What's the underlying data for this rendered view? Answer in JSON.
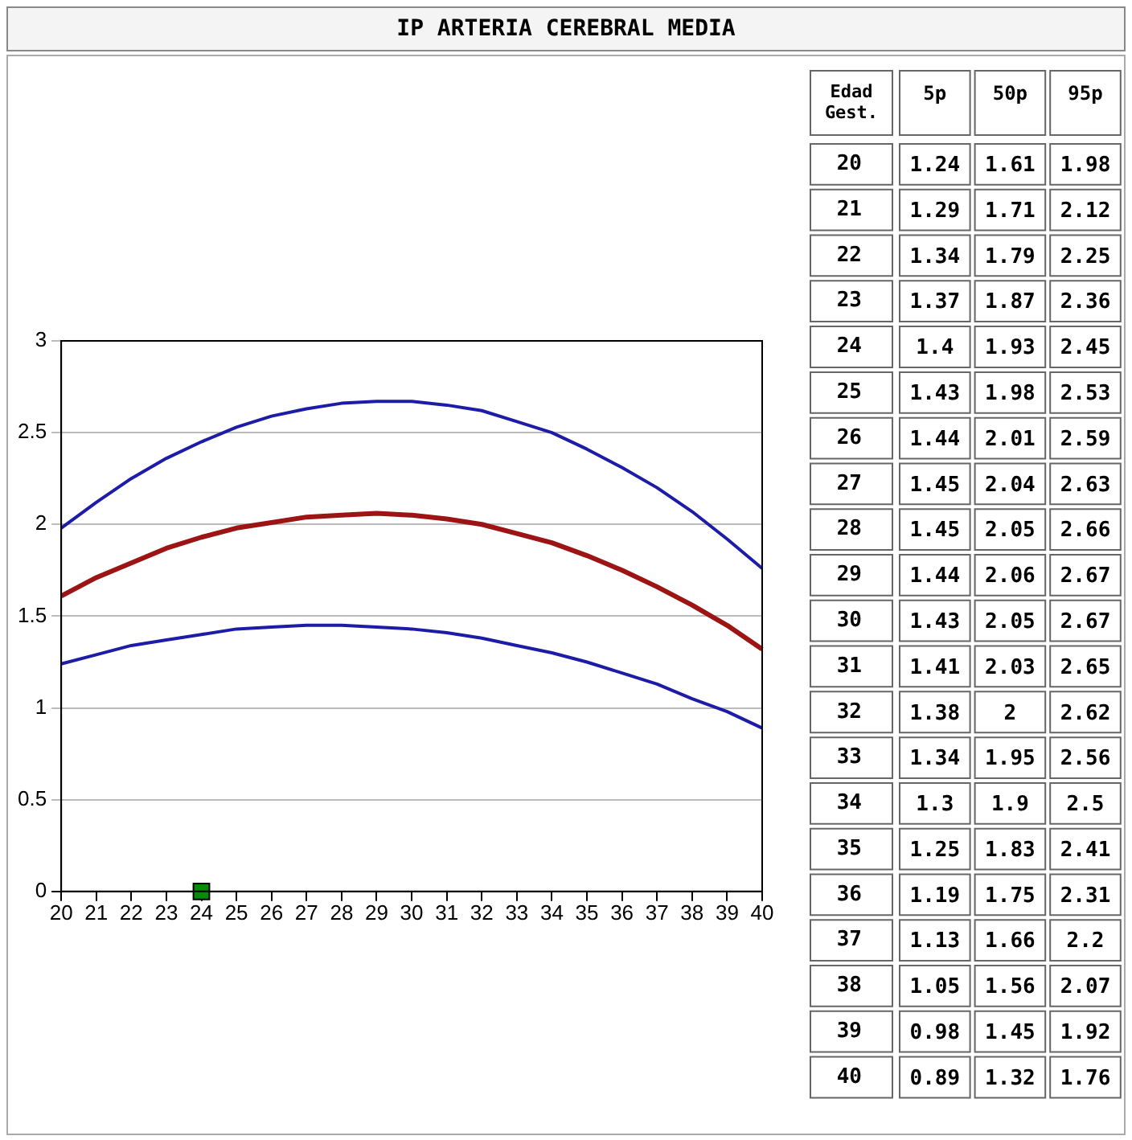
{
  "chart_data": [
    {
      "type": "line",
      "title": "IP ARTERIA CEREBRAL MEDIA",
      "x": [
        20,
        21,
        22,
        23,
        24,
        25,
        26,
        27,
        28,
        29,
        30,
        31,
        32,
        33,
        34,
        35,
        36,
        37,
        38,
        39,
        40
      ],
      "series": [
        {
          "color": "#1c1ca8",
          "values": [
            1.24,
            1.29,
            1.34,
            1.37,
            1.4,
            1.43,
            1.44,
            1.45,
            1.45,
            1.44,
            1.43,
            1.41,
            1.38,
            1.34,
            1.3,
            1.25,
            1.19,
            1.13,
            1.05,
            0.98,
            0.89
          ]
        },
        {
          "color": "#9c1414",
          "values": [
            1.61,
            1.71,
            1.79,
            1.87,
            1.93,
            1.98,
            2.01,
            2.04,
            2.05,
            2.06,
            2.05,
            2.03,
            2,
            1.95,
            1.9,
            1.83,
            1.75,
            1.66,
            1.56,
            1.45,
            1.32
          ]
        },
        {
          "color": "#1c1ca8",
          "values": [
            1.98,
            2.12,
            2.25,
            2.36,
            2.45,
            2.53,
            2.59,
            2.63,
            2.66,
            2.67,
            2.67,
            2.65,
            2.62,
            2.56,
            2.5,
            2.41,
            2.31,
            2.2,
            2.07,
            1.92,
            1.76
          ]
        },
        {
          "type": "scatter",
          "color": "#0a8a0a",
          "marker": "square",
          "x": [
            24
          ],
          "values": [
            0
          ]
        }
      ],
      "xlim": [
        20,
        40
      ],
      "xticks": [
        20,
        21,
        22,
        23,
        24,
        25,
        26,
        27,
        28,
        29,
        30,
        31,
        32,
        33,
        34,
        35,
        36,
        37,
        38,
        39,
        40
      ],
      "ylim": [
        0,
        3
      ],
      "yticks": [
        0,
        0.5,
        1,
        1.5,
        2,
        2.5,
        3
      ],
      "grid": "y",
      "legend": false,
      "marker": "none",
      "line_style": "solid"
    },
    {
      "type": "heatmap",
      "annotations": [
        "Edad Gest."
      ],
      "categories": [
        "5p",
        "50p",
        "95p"
      ],
      "y_categories": [
        "20",
        "21",
        "22",
        "23",
        "24",
        "25",
        "26",
        "27",
        "28",
        "29",
        "30",
        "31",
        "32",
        "33",
        "34",
        "35",
        "36",
        "37",
        "38",
        "39",
        "40"
      ],
      "cells": [
        [
          1.24,
          1.61,
          1.98
        ],
        [
          1.29,
          1.71,
          2.12
        ],
        [
          1.34,
          1.79,
          2.25
        ],
        [
          1.37,
          1.87,
          2.36
        ],
        [
          1.4,
          1.93,
          2.45
        ],
        [
          1.43,
          1.98,
          2.53
        ],
        [
          1.44,
          2.01,
          2.59
        ],
        [
          1.45,
          2.04,
          2.63
        ],
        [
          1.45,
          2.05,
          2.66
        ],
        [
          1.44,
          2.06,
          2.67
        ],
        [
          1.43,
          2.05,
          2.67
        ],
        [
          1.41,
          2.03,
          2.65
        ],
        [
          1.38,
          2,
          2.62
        ],
        [
          1.34,
          1.95,
          2.56
        ],
        [
          1.3,
          1.9,
          2.5
        ],
        [
          1.25,
          1.83,
          2.41
        ],
        [
          1.19,
          1.75,
          2.31
        ],
        [
          1.13,
          1.66,
          2.2
        ],
        [
          1.05,
          1.56,
          2.07
        ],
        [
          0.98,
          1.45,
          1.92
        ],
        [
          0.89,
          1.32,
          1.76
        ]
      ],
      "data_labels": true
    }
  ]
}
